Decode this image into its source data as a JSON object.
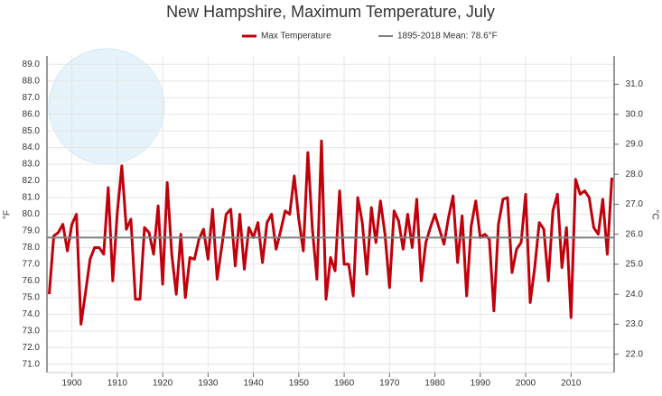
{
  "chart_data": {
    "type": "line",
    "title": "New Hampshire, Maximum Temperature, July",
    "ylabel": "°F",
    "y2label": "°C",
    "x": [
      1895,
      1896,
      1897,
      1898,
      1899,
      1900,
      1901,
      1902,
      1903,
      1904,
      1905,
      1906,
      1907,
      1908,
      1909,
      1910,
      1911,
      1912,
      1913,
      1914,
      1915,
      1916,
      1917,
      1918,
      1919,
      1920,
      1921,
      1922,
      1923,
      1924,
      1925,
      1926,
      1927,
      1928,
      1929,
      1930,
      1931,
      1932,
      1933,
      1934,
      1935,
      1936,
      1937,
      1938,
      1939,
      1940,
      1941,
      1942,
      1943,
      1944,
      1945,
      1946,
      1947,
      1948,
      1949,
      1950,
      1951,
      1952,
      1953,
      1954,
      1955,
      1956,
      1957,
      1958,
      1959,
      1960,
      1961,
      1962,
      1963,
      1964,
      1965,
      1966,
      1967,
      1968,
      1969,
      1970,
      1971,
      1972,
      1973,
      1974,
      1975,
      1976,
      1977,
      1978,
      1979,
      1980,
      1981,
      1982,
      1983,
      1984,
      1985,
      1986,
      1987,
      1988,
      1989,
      1990,
      1991,
      1992,
      1993,
      1994,
      1995,
      1996,
      1997,
      1998,
      1999,
      2000,
      2001,
      2002,
      2003,
      2004,
      2005,
      2006,
      2007,
      2008,
      2009,
      2010,
      2011,
      2012,
      2013,
      2014,
      2015,
      2016,
      2017,
      2018,
      2019
    ],
    "series": [
      {
        "name": "Max Temperature",
        "color": "#c0000b",
        "values": [
          75.2,
          78.7,
          78.9,
          79.4,
          77.8,
          79.4,
          80.0,
          73.4,
          75.3,
          77.3,
          78.0,
          78.0,
          77.6,
          81.6,
          76.0,
          80.1,
          82.9,
          79.1,
          79.7,
          74.9,
          74.9,
          79.2,
          78.9,
          77.6,
          80.5,
          75.8,
          81.9,
          77.6,
          75.2,
          78.8,
          75.0,
          77.4,
          77.3,
          78.5,
          79.1,
          77.3,
          80.3,
          76.1,
          78.0,
          80.0,
          80.3,
          76.9,
          80.0,
          76.7,
          79.2,
          78.6,
          79.5,
          77.1,
          79.5,
          80.0,
          77.9,
          79.0,
          80.2,
          80.0,
          82.3,
          79.7,
          77.8,
          83.7,
          79.1,
          76.1,
          84.4,
          74.9,
          77.4,
          76.6,
          81.4,
          77.0,
          77.0,
          75.1,
          81.0,
          79.5,
          76.4,
          80.4,
          78.3,
          80.8,
          78.8,
          75.6,
          80.2,
          79.6,
          77.9,
          80.0,
          78.0,
          80.9,
          76.0,
          78.3,
          79.2,
          80.0,
          79.1,
          78.2,
          79.8,
          81.1,
          77.1,
          79.9,
          75.1,
          79.3,
          80.8,
          78.6,
          78.8,
          78.5,
          74.2,
          79.4,
          80.9,
          81.0,
          76.5,
          77.9,
          78.3,
          81.2,
          74.7,
          76.8,
          79.5,
          79.1,
          76.0,
          80.2,
          81.2,
          76.8,
          79.2,
          73.8,
          82.1,
          81.2,
          81.4,
          81.0,
          79.2,
          78.8,
          80.9,
          77.6,
          82.2
        ]
      }
    ],
    "mean": {
      "name": "1895-2018 Mean: 78.6°F",
      "value": 78.6,
      "color": "#7f7f7f"
    },
    "xlim": [
      1894.5,
      2019.5
    ],
    "xticks": [
      1900,
      1910,
      1920,
      1930,
      1940,
      1950,
      1960,
      1970,
      1980,
      1990,
      2000,
      2010
    ],
    "ylim": [
      70.5,
      89.5
    ],
    "yticks": [
      {
        "value": 71,
        "label": "71.0"
      },
      {
        "value": 72,
        "label": "72.0"
      },
      {
        "value": 73,
        "label": "73.0"
      },
      {
        "value": 74,
        "label": "74.0"
      },
      {
        "value": 75,
        "label": "75.0"
      },
      {
        "value": 76,
        "label": "76.0"
      },
      {
        "value": 77,
        "label": "77.0"
      },
      {
        "value": 78,
        "label": "78.0"
      },
      {
        "value": 79,
        "label": "79.0"
      },
      {
        "value": 80,
        "label": "80.0"
      },
      {
        "value": 81,
        "label": "81.0"
      },
      {
        "value": 82,
        "label": "82.0"
      },
      {
        "value": 83,
        "label": "83.0"
      },
      {
        "value": 84,
        "label": "84.0"
      },
      {
        "value": 85,
        "label": "85.0"
      },
      {
        "value": 86,
        "label": "86.0"
      },
      {
        "value": 87,
        "label": "87.0"
      },
      {
        "value": 88,
        "label": "88.0"
      },
      {
        "value": 89,
        "label": "89.0"
      }
    ],
    "y2lim": [
      21.389,
      31.944
    ],
    "y2ticks": [
      {
        "value": 22,
        "label": "22.0"
      },
      {
        "value": 23,
        "label": "23.0"
      },
      {
        "value": 24,
        "label": "24.0"
      },
      {
        "value": 25,
        "label": "25.0"
      },
      {
        "value": 26,
        "label": "26.0"
      },
      {
        "value": 27,
        "label": "27.0"
      },
      {
        "value": 28,
        "label": "28.0"
      },
      {
        "value": 29,
        "label": "29.0"
      },
      {
        "value": 30,
        "label": "30.0"
      },
      {
        "value": 31,
        "label": "31.0"
      }
    ],
    "grid": true
  }
}
